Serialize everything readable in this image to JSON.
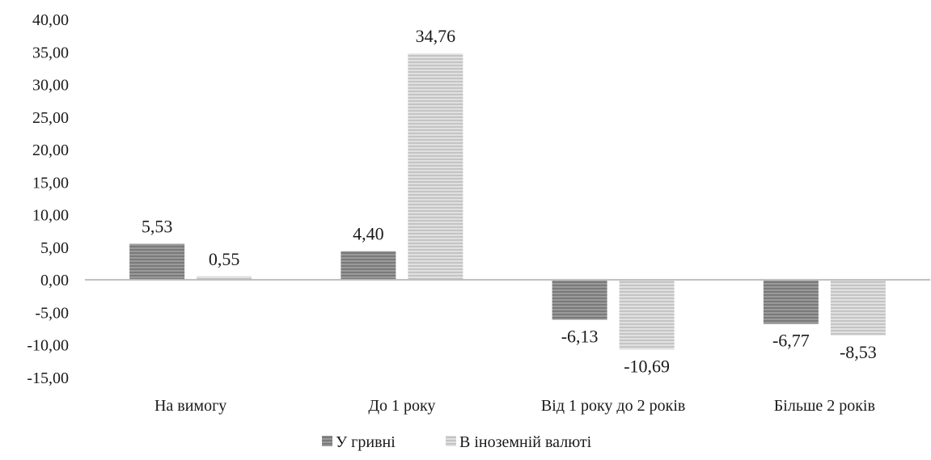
{
  "chart_data": {
    "type": "bar",
    "title": "",
    "xlabel": "",
    "ylabel": "",
    "categories": [
      "На вимогу",
      "До 1 року",
      "Від 1 року до 2 років",
      "Більше 2 років"
    ],
    "series": [
      {
        "name": "У гривні",
        "values": [
          5.53,
          4.4,
          -6.13,
          -6.77
        ],
        "labels": [
          "5,53",
          "4,40",
          "-6,13",
          "-6,77"
        ],
        "color": "#8c8c8c"
      },
      {
        "name": "В іноземній валюті",
        "values": [
          0.55,
          34.76,
          -10.69,
          -8.53
        ],
        "labels": [
          "0,55",
          "34,76",
          "-10,69",
          "-8,53"
        ],
        "color": "#d0d0d0"
      }
    ],
    "ylim": [
      -15,
      40
    ],
    "yticks": [
      40,
      35,
      30,
      25,
      20,
      15,
      10,
      5,
      0,
      -5,
      -10,
      -15
    ],
    "ytick_labels": [
      "40,00",
      "35,00",
      "30,00",
      "25,00",
      "20,00",
      "15,00",
      "10,00",
      "5,00",
      "0,00",
      "-5,00",
      "-10,00",
      "-15,00"
    ],
    "grid": false,
    "legend_position": "bottom-center"
  }
}
